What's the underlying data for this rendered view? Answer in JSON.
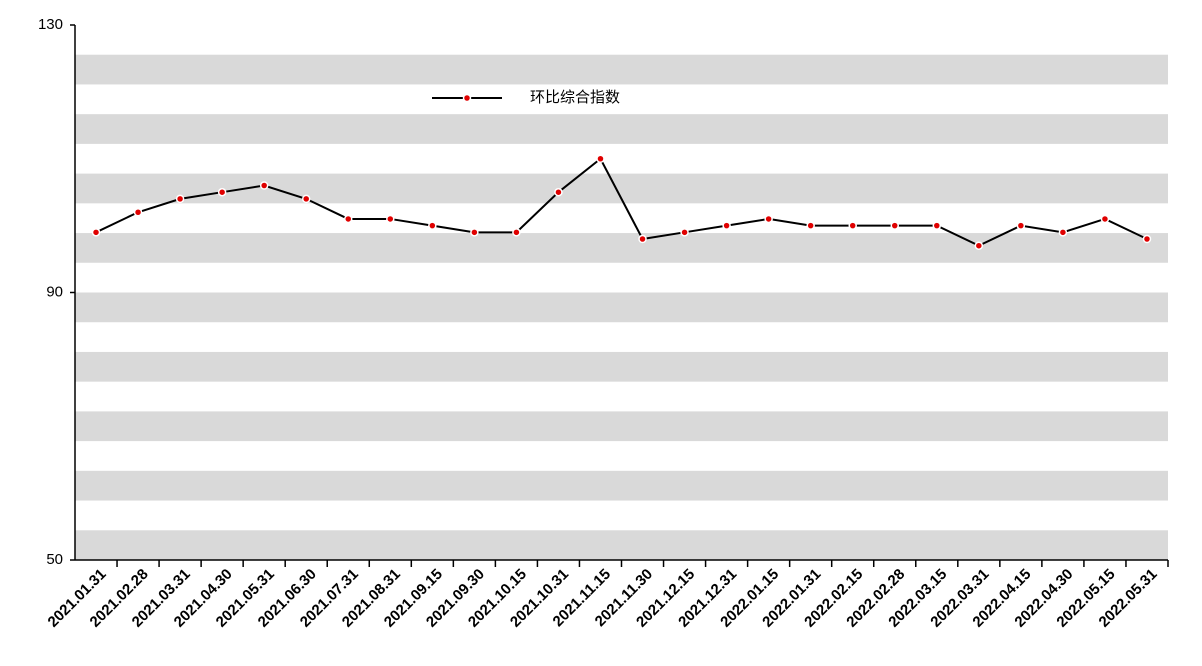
{
  "chart_data": {
    "type": "line",
    "categories": [
      "2021.01.31",
      "2021.02.28",
      "2021.03.31",
      "2021.04.30",
      "2021.05.31",
      "2021.06.30",
      "2021.07.31",
      "2021.08.31",
      "2021.09.15",
      "2021.09.30",
      "2021.10.15",
      "2021.10.31",
      "2021.11.15",
      "2021.11.30",
      "2021.12.15",
      "2021.12.31",
      "2022.01.15",
      "2022.01.31",
      "2022.02.15",
      "2022.02.28",
      "2022.03.15",
      "2022.03.31",
      "2022.04.15",
      "2022.04.30",
      "2022.05.15",
      "2022.05.31"
    ],
    "series": [
      {
        "name": "环比综合指数",
        "color": "#000000",
        "marker_color": "#e00000",
        "values": [
          99,
          102,
          104,
          105,
          106,
          104,
          101,
          101,
          100,
          99,
          99,
          105,
          110,
          98,
          99,
          100,
          101,
          100,
          100,
          100,
          100,
          97,
          100,
          99,
          101,
          98
        ]
      }
    ],
    "ylim": [
      50,
      130
    ],
    "yticks": [
      50,
      90,
      130
    ],
    "legend": "top"
  }
}
